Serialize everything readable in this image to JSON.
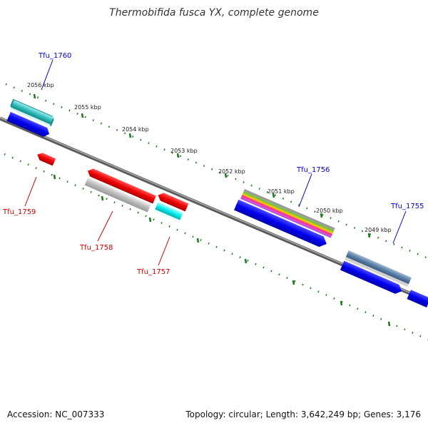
{
  "title": "Thermobifida fusca YX, complete genome",
  "footer": {
    "accession": "Accession: NC_007333",
    "summary": "Topology: circular; Length: 3,642,249 bp; Genes: 3,176"
  },
  "colors": {
    "backbone": "#777777",
    "tick": "#1a7a1a",
    "forward_label": "#0000cc",
    "reverse_label": "#cc0000"
  },
  "scale_labels": [
    "2056 kbp",
    "2055 kbp",
    "2054 kbp",
    "2053 kbp",
    "2052 kbp",
    "2051 kbp",
    "2050 kbp",
    "2049 kbp"
  ],
  "genes": {
    "tfu_1760": "Tfu_1760",
    "tfu_1759": "Tfu_1759",
    "tfu_1758": "Tfu_1758",
    "tfu_1757": "Tfu_1757",
    "tfu_1756": "Tfu_1756",
    "tfu_1755": "Tfu_1755"
  }
}
